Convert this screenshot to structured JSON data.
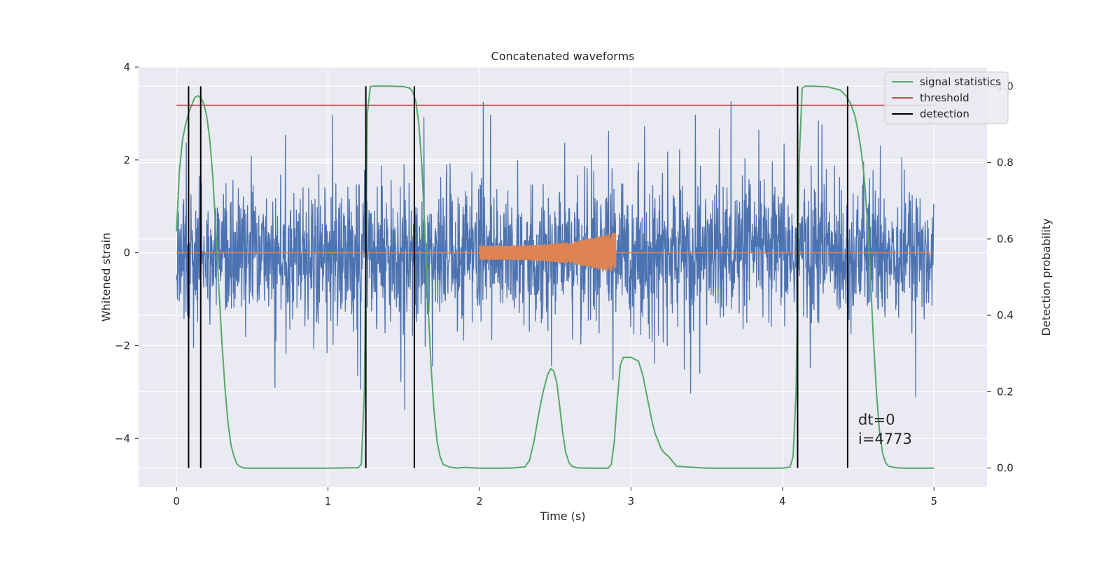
{
  "chart_data": {
    "type": "line",
    "title": "Concatenated waveforms",
    "xlabel": "Time (s)",
    "ylabel_left": "Whitened strain",
    "ylabel_right": "Detection probability",
    "xlim": [
      -0.25,
      5.35
    ],
    "ylim_left": [
      -5.05,
      4.0
    ],
    "ylim_right": [
      -0.05,
      1.05
    ],
    "x_ticks": [
      0,
      1,
      2,
      3,
      4,
      5
    ],
    "x_tick_labels": [
      "0",
      "1",
      "2",
      "3",
      "4",
      "5"
    ],
    "y_left_ticks": [
      -4,
      -2,
      0,
      2,
      4
    ],
    "y_left_tick_labels": [
      "−4",
      "−2",
      "0",
      "2",
      "4"
    ],
    "y_right_ticks": [
      0.0,
      0.2,
      0.4,
      0.6,
      0.8,
      1.0
    ],
    "y_right_tick_labels": [
      "0.0",
      "0.2",
      "0.4",
      "0.6",
      "0.8",
      "1.0"
    ],
    "grid": true,
    "legend_position": "top-right",
    "legend": [
      "signal statistics",
      "threshold",
      "detection"
    ],
    "colors": {
      "background": "#eaeaf2",
      "grid": "#ffffff",
      "strain": "#4c72b0",
      "template": "#dd8452",
      "signal_statistics": "#55a868",
      "threshold": "#c44e52",
      "detection": "#000000"
    },
    "series": [
      {
        "name": "signal statistics",
        "axis": "right",
        "x": [
          0.0,
          0.02,
          0.04,
          0.06,
          0.08,
          0.1,
          0.12,
          0.14,
          0.16,
          0.18,
          0.2,
          0.22,
          0.24,
          0.26,
          0.28,
          0.3,
          0.32,
          0.34,
          0.36,
          0.38,
          0.4,
          0.42,
          0.44,
          0.46,
          0.5,
          0.8,
          1.0,
          1.2,
          1.22,
          1.24,
          1.26,
          1.28,
          1.3,
          1.35,
          1.4,
          1.5,
          1.54,
          1.56,
          1.58,
          1.6,
          1.62,
          1.64,
          1.66,
          1.68,
          1.7,
          1.72,
          1.74,
          1.76,
          1.8,
          1.85,
          1.9,
          2.0,
          2.2,
          2.3,
          2.33,
          2.36,
          2.39,
          2.42,
          2.45,
          2.47,
          2.49,
          2.51,
          2.53,
          2.55,
          2.57,
          2.59,
          2.61,
          2.64,
          2.7,
          2.85,
          2.87,
          2.89,
          2.91,
          2.93,
          2.95,
          2.97,
          3.0,
          3.05,
          3.08,
          3.1,
          3.12,
          3.14,
          3.16,
          3.18,
          3.2,
          3.22,
          3.25,
          3.28,
          3.3,
          3.5,
          4.0,
          4.05,
          4.07,
          4.09,
          4.11,
          4.13,
          4.15,
          4.2,
          4.3,
          4.38,
          4.42,
          4.45,
          4.48,
          4.5,
          4.52,
          4.54,
          4.56,
          4.58,
          4.6,
          4.62,
          4.64,
          4.66,
          4.68,
          4.7,
          4.75,
          4.8,
          5.0
        ],
        "values": [
          0.62,
          0.78,
          0.86,
          0.9,
          0.93,
          0.95,
          0.97,
          0.975,
          0.97,
          0.955,
          0.92,
          0.86,
          0.76,
          0.62,
          0.47,
          0.33,
          0.21,
          0.12,
          0.06,
          0.03,
          0.01,
          0.004,
          0.001,
          0.0,
          0.0,
          0.0,
          0.0,
          0.001,
          0.01,
          0.2,
          0.93,
          0.999,
          1.0,
          1.0,
          1.0,
          0.999,
          0.995,
          0.985,
          0.96,
          0.9,
          0.79,
          0.62,
          0.43,
          0.27,
          0.15,
          0.07,
          0.03,
          0.01,
          0.003,
          0.0,
          0.002,
          0.0,
          0.0,
          0.003,
          0.02,
          0.07,
          0.14,
          0.2,
          0.245,
          0.26,
          0.255,
          0.225,
          0.16,
          0.09,
          0.04,
          0.015,
          0.005,
          0.001,
          0.0,
          0.0,
          0.01,
          0.07,
          0.18,
          0.27,
          0.29,
          0.29,
          0.29,
          0.28,
          0.24,
          0.2,
          0.16,
          0.12,
          0.09,
          0.07,
          0.05,
          0.04,
          0.03,
          0.015,
          0.005,
          0.0,
          0.0,
          0.003,
          0.03,
          0.2,
          0.8,
          0.995,
          1.0,
          1.0,
          0.998,
          0.99,
          0.975,
          0.955,
          0.92,
          0.88,
          0.83,
          0.76,
          0.65,
          0.5,
          0.34,
          0.2,
          0.1,
          0.04,
          0.015,
          0.005,
          0.001,
          0.0,
          0.0
        ]
      },
      {
        "name": "threshold",
        "axis": "right",
        "x": [
          0.0,
          5.0
        ],
        "values": [
          0.95,
          0.95
        ]
      },
      {
        "name": "detection",
        "axis": "right",
        "type": "vlines",
        "x": [
          0.08,
          0.16,
          1.25,
          1.57,
          4.1,
          4.43
        ],
        "range": [
          0.0,
          1.0
        ]
      },
      {
        "axis": "left",
        "description": "whitened strain (noise) — rendered as dense line",
        "x_range": [
          0.0,
          5.0
        ],
        "typical_range": [
          -2.0,
          2.3
        ],
        "extremes": [
          -3.9,
          3.6
        ]
      },
      {
        "axis": "left",
        "description": "injected template (chirp)",
        "x_range": [
          2.0,
          2.9
        ],
        "amplitude_start": 0.15,
        "amplitude_end": 0.45
      }
    ],
    "annotations": [
      "dt=0",
      "i=4773"
    ]
  }
}
